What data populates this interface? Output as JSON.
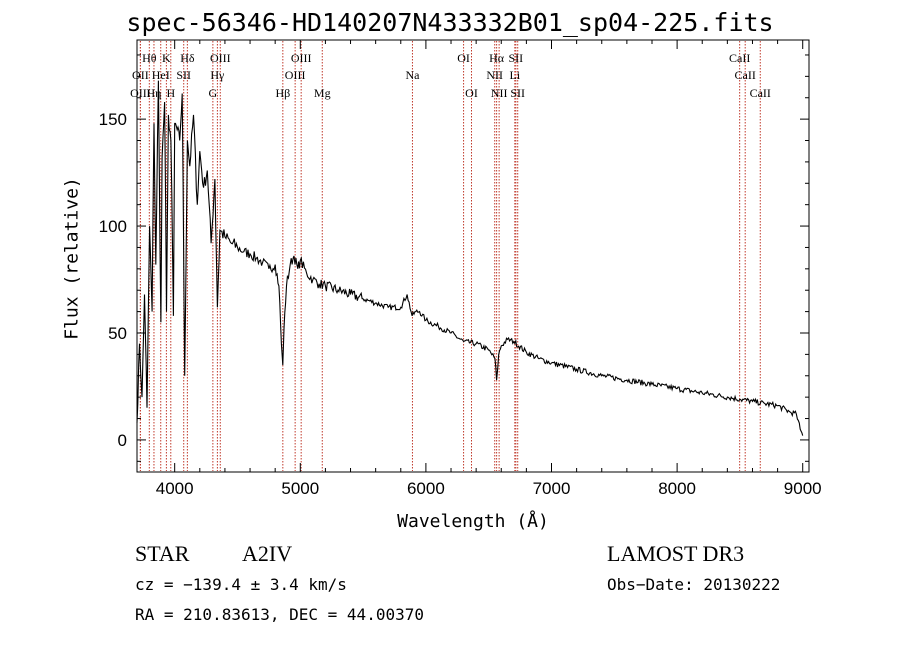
{
  "chart_data": {
    "type": "line",
    "title": "spec-56346-HD140207N433332B01_sp04-225.fits",
    "xlabel": "Wavelength (Å)",
    "ylabel": "Flux (relative)",
    "xlim": [
      3700,
      9050
    ],
    "ylim": [
      -15,
      187
    ],
    "x_ticks": [
      4000,
      5000,
      6000,
      7000,
      8000,
      9000
    ],
    "y_ticks": [
      0,
      50,
      100,
      150
    ],
    "line_color": "#000000",
    "marker_color": "#c0392b",
    "series": [
      {
        "name": "spectrum",
        "x": [
          3700,
          3720,
          3740,
          3760,
          3780,
          3800,
          3820,
          3835,
          3850,
          3870,
          3890,
          3900,
          3920,
          3935,
          3950,
          3970,
          3990,
          4000,
          4020,
          4040,
          4060,
          4080,
          4101,
          4120,
          4150,
          4180,
          4200,
          4230,
          4260,
          4290,
          4320,
          4340,
          4360,
          4400,
          4450,
          4500,
          4550,
          4600,
          4650,
          4700,
          4750,
          4800,
          4830,
          4850,
          4861,
          4870,
          4890,
          4920,
          4950,
          4980,
          5000,
          5050,
          5100,
          5150,
          5200,
          5300,
          5400,
          5500,
          5600,
          5700,
          5800,
          5850,
          5890,
          5920,
          5950,
          6000,
          6100,
          6200,
          6300,
          6400,
          6500,
          6550,
          6563,
          6580,
          6600,
          6650,
          6700,
          6800,
          6900,
          7000,
          7200,
          7400,
          7600,
          7800,
          8000,
          8200,
          8400,
          8500,
          8600,
          8700,
          8800,
          8900,
          8950,
          8980,
          9000
        ],
        "y": [
          8,
          45,
          20,
          68,
          15,
          100,
          60,
          148,
          82,
          168,
          55,
          132,
          158,
          60,
          152,
          140,
          58,
          148,
          145,
          140,
          162,
          30,
          140,
          128,
          152,
          110,
          135,
          118,
          126,
          92,
          122,
          62,
          98,
          95,
          92,
          90,
          88,
          87,
          85,
          83,
          80,
          82,
          72,
          45,
          35,
          52,
          72,
          82,
          86,
          80,
          84,
          78,
          75,
          73,
          72,
          70,
          68,
          66,
          64,
          62,
          62,
          68,
          58,
          60,
          60,
          56,
          53,
          50,
          46,
          45,
          42,
          38,
          28,
          40,
          44,
          47,
          46,
          41,
          38,
          36,
          33,
          30,
          28,
          26,
          24,
          22,
          20,
          19,
          18,
          17,
          16,
          13,
          12,
          5,
          2
        ]
      }
    ],
    "line_markers": [
      {
        "label": "Hθ",
        "x": 3798,
        "row": 1
      },
      {
        "label": "OII",
        "x": 3727,
        "row": 2
      },
      {
        "label": "OIII",
        "x": 3727,
        "row": 3
      },
      {
        "label": "Hη",
        "x": 3835,
        "row": 3
      },
      {
        "label": "HeI",
        "x": 3889,
        "row": 2
      },
      {
        "label": "K",
        "x": 3934,
        "row": 1
      },
      {
        "label": "H",
        "x": 3969,
        "row": 3
      },
      {
        "label": "SII",
        "x": 4072,
        "row": 2
      },
      {
        "label": "Hδ",
        "x": 4101,
        "row": 1
      },
      {
        "label": "OIII",
        "x": 4363,
        "row": 1
      },
      {
        "label": "Hγ",
        "x": 4340,
        "row": 2
      },
      {
        "label": "G",
        "x": 4304,
        "row": 3
      },
      {
        "label": "Hβ",
        "x": 4861,
        "row": 3
      },
      {
        "label": "OIII",
        "x": 5007,
        "row": 1
      },
      {
        "label": "OIII",
        "x": 4959,
        "row": 2
      },
      {
        "label": "Mg",
        "x": 5175,
        "row": 3
      },
      {
        "label": "Na",
        "x": 5893,
        "row": 2
      },
      {
        "label": "OI",
        "x": 6300,
        "row": 1
      },
      {
        "label": "OI",
        "x": 6363,
        "row": 3
      },
      {
        "label": "Hα",
        "x": 6563,
        "row": 1
      },
      {
        "label": "SII",
        "x": 6716,
        "row": 1
      },
      {
        "label": "NII",
        "x": 6548,
        "row": 2
      },
      {
        "label": "Li",
        "x": 6708,
        "row": 2
      },
      {
        "label": "NII",
        "x": 6583,
        "row": 3
      },
      {
        "label": "SII",
        "x": 6731,
        "row": 3
      },
      {
        "label": "CaII",
        "x": 8498,
        "row": 1
      },
      {
        "label": "CaII",
        "x": 8542,
        "row": 2
      },
      {
        "label": "CaII",
        "x": 8662,
        "row": 3
      }
    ]
  },
  "info": {
    "object_class": "STAR",
    "subclass": "A2IV",
    "survey": "LAMOST DR3",
    "cz_text": "cz = −139.4 ± 3.4 km/s",
    "obs_date_text": "Obs−Date: 20130222",
    "radec_text": "RA = 210.83613, DEC =  44.00370"
  }
}
